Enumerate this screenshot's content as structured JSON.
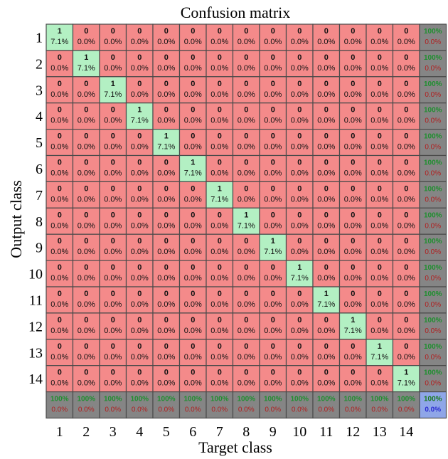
{
  "chart_data": {
    "type": "heatmap",
    "title": "Confusion matrix",
    "xlabel": "Target class",
    "ylabel": "Output class",
    "x_tick_labels": [
      "1",
      "2",
      "3",
      "4",
      "5",
      "6",
      "7",
      "8",
      "9",
      "10",
      "11",
      "12",
      "13",
      "14"
    ],
    "y_tick_labels": [
      "1",
      "2",
      "3",
      "4",
      "5",
      "6",
      "7",
      "8",
      "9",
      "10",
      "11",
      "12",
      "13",
      "14"
    ],
    "matrix": [
      [
        1,
        0,
        0,
        0,
        0,
        0,
        0,
        0,
        0,
        0,
        0,
        0,
        0,
        0
      ],
      [
        0,
        1,
        0,
        0,
        0,
        0,
        0,
        0,
        0,
        0,
        0,
        0,
        0,
        0
      ],
      [
        0,
        0,
        1,
        0,
        0,
        0,
        0,
        0,
        0,
        0,
        0,
        0,
        0,
        0
      ],
      [
        0,
        0,
        0,
        1,
        0,
        0,
        0,
        0,
        0,
        0,
        0,
        0,
        0,
        0
      ],
      [
        0,
        0,
        0,
        0,
        1,
        0,
        0,
        0,
        0,
        0,
        0,
        0,
        0,
        0
      ],
      [
        0,
        0,
        0,
        0,
        0,
        1,
        0,
        0,
        0,
        0,
        0,
        0,
        0,
        0
      ],
      [
        0,
        0,
        0,
        0,
        0,
        0,
        1,
        0,
        0,
        0,
        0,
        0,
        0,
        0
      ],
      [
        0,
        0,
        0,
        0,
        0,
        0,
        0,
        1,
        0,
        0,
        0,
        0,
        0,
        0
      ],
      [
        0,
        0,
        0,
        0,
        0,
        0,
        0,
        0,
        1,
        0,
        0,
        0,
        0,
        0
      ],
      [
        0,
        0,
        0,
        0,
        0,
        0,
        0,
        0,
        0,
        1,
        0,
        0,
        0,
        0
      ],
      [
        0,
        0,
        0,
        0,
        0,
        0,
        0,
        0,
        0,
        0,
        1,
        0,
        0,
        0
      ],
      [
        0,
        0,
        0,
        0,
        0,
        0,
        0,
        0,
        0,
        0,
        0,
        1,
        0,
        0
      ],
      [
        0,
        0,
        0,
        0,
        0,
        0,
        0,
        0,
        0,
        0,
        0,
        0,
        1,
        0
      ],
      [
        0,
        0,
        0,
        0,
        0,
        0,
        0,
        0,
        0,
        0,
        0,
        0,
        0,
        1
      ]
    ],
    "diagonal_percent_label": "7.1%",
    "off_diagonal_percent_label": "0.0%",
    "row_summary": {
      "correct": "100%",
      "error": "0.0%"
    },
    "column_summary": {
      "correct": "100%",
      "error": "0.0%"
    },
    "overall_summary": {
      "correct": "100%",
      "error": "0.0%"
    },
    "colors": {
      "correct_cell": "#b3f0c3",
      "wrong_cell": "#f48a8a",
      "summary_cell": "#858585",
      "total_cell": "#8fa6e8",
      "border": "#4a4a4a"
    }
  }
}
